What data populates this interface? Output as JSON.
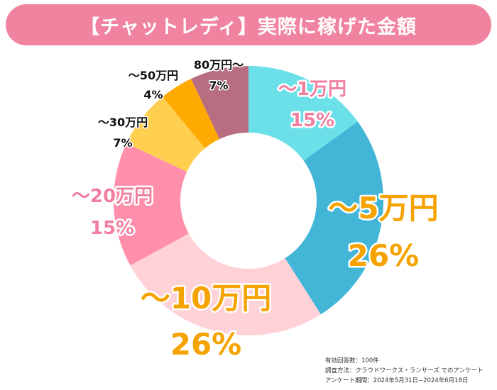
{
  "title": "【チャットレディ】実際に稼げた金額",
  "chart_data": {
    "type": "pie",
    "title": "【チャットレディ】実際に稼げた金額",
    "slices": [
      {
        "label": "～1万円",
        "percent_label": "15%",
        "value": 15,
        "color": "#6ce0e8",
        "label_color": "#f07fa0",
        "label_stroke": "#ffffff"
      },
      {
        "label": "～5万円",
        "percent_label": "26%",
        "value": 26,
        "color": "#43b6d8",
        "label_color": "#f5a300",
        "label_stroke": "#ffffff"
      },
      {
        "label": "～10万円",
        "percent_label": "26%",
        "value": 26,
        "color": "#ffd2d8",
        "label_color": "#f5a300",
        "label_stroke": "#ffffff"
      },
      {
        "label": "～20万円",
        "percent_label": "15%",
        "value": 15,
        "color": "#ff8fab",
        "label_color": "#f07fa0",
        "label_stroke": "#ffffff"
      },
      {
        "label": "～30万円",
        "percent_label": "7%",
        "value": 7,
        "color": "#ffd04f",
        "label_color": "#111111",
        "label_stroke": "#ffffff"
      },
      {
        "label": "～50万円",
        "percent_label": "4%",
        "value": 4,
        "color": "#ffaa00",
        "label_color": "#111111",
        "label_stroke": "#ffffff"
      },
      {
        "label": "80万円～",
        "percent_label": "7%",
        "value": 7,
        "color": "#b86d80",
        "label_color": "#111111",
        "label_stroke": "#ffffff"
      }
    ],
    "legend": "none"
  },
  "footnote": {
    "line1": "有効回答数：100件",
    "line2": "調査方法：クラウドワークス・ランサーズ でのアンケート",
    "line3": "アンケート期間：2024年5月31日−2024年6月18日"
  },
  "colors": {
    "title_bg": "#f0839f",
    "title_text": "#ffffff",
    "background": "#ffffff"
  }
}
